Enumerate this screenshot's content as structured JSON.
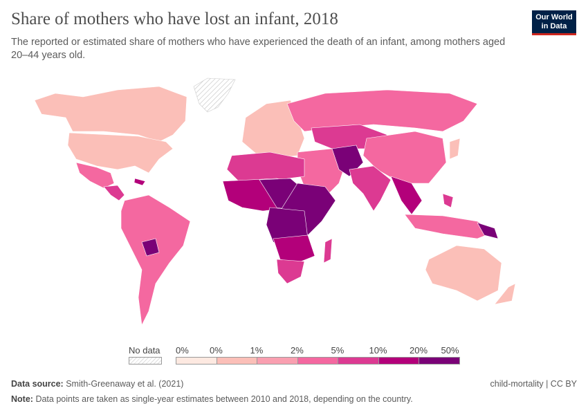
{
  "header": {
    "title": "Share of mothers who have lost an infant, 2018",
    "subtitle": "The reported or estimated share of mothers who have experienced the death of an infant, among mothers aged 20–44 years old.",
    "logo": "Our World in Data"
  },
  "legend": {
    "no_data": "No data",
    "ticks": [
      "0%",
      "0%",
      "1%",
      "2%",
      "5%",
      "10%",
      "20%",
      "50%"
    ],
    "colors": [
      "#fde9e1",
      "#fbbfb8",
      "#f99fb0",
      "#f468a0",
      "#dc3a92",
      "#b3007a",
      "#7a0177"
    ]
  },
  "footer": {
    "source_label": "Data source:",
    "source": "Smith-Greenaway et al. (2021)",
    "note_label": "Note:",
    "note": "Data points are taken as single-year estimates between 2010 and 2018, depending on the country.",
    "license": "child-mortality | CC BY"
  }
}
